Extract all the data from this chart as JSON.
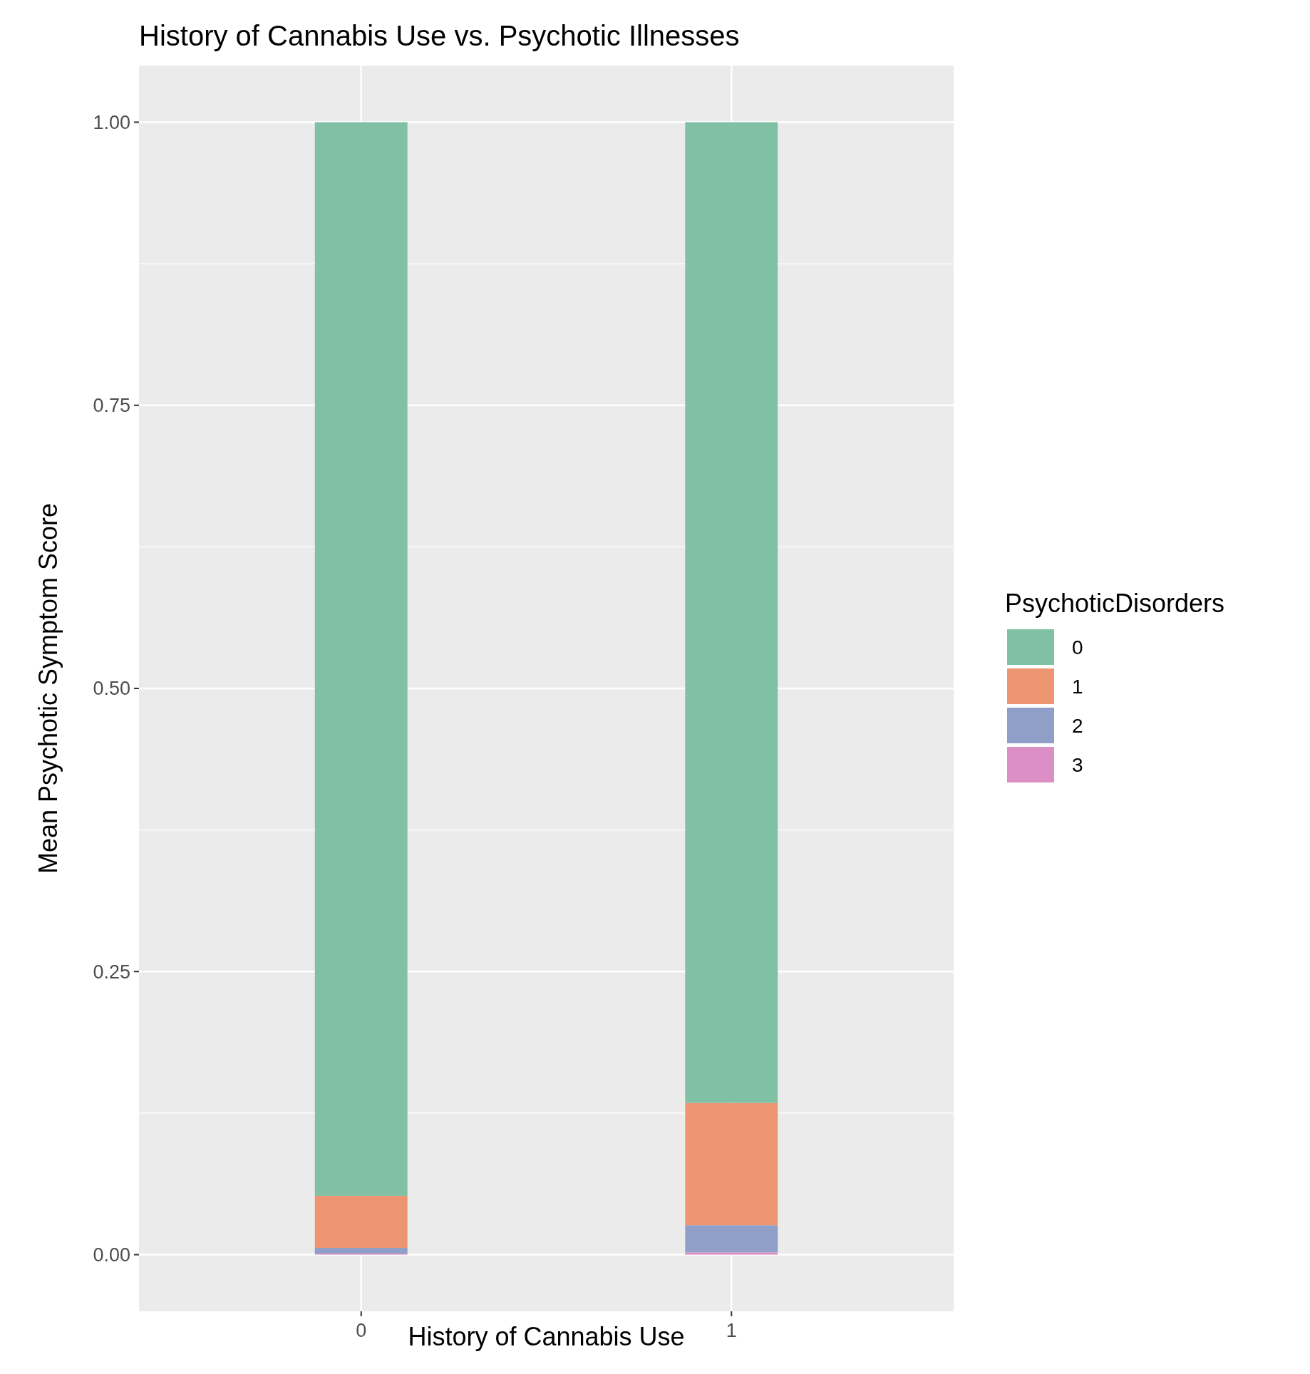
{
  "chart_data": {
    "type": "bar",
    "title": "History of Cannabis Use vs. Psychotic Illnesses",
    "xlabel": "History of Cannabis Use",
    "ylabel": "Mean Psychotic Symptom Score",
    "legend_title": "PsychoticDisorders",
    "categories": [
      "0",
      "1"
    ],
    "stacked": true,
    "series": [
      {
        "name": "3",
        "color": "#dc8fc5",
        "values": [
          0.001,
          0.002
        ]
      },
      {
        "name": "2",
        "color": "#909fc7",
        "values": [
          0.005,
          0.024
        ]
      },
      {
        "name": "1",
        "color": "#ec9570",
        "values": [
          0.046,
          0.108
        ]
      },
      {
        "name": "0",
        "color": "#80c1a6",
        "values": [
          0.948,
          0.866
        ]
      }
    ],
    "ylim": [
      -0.05,
      1.05
    ],
    "yticks": [
      {
        "value": 0,
        "label": "0.00"
      },
      {
        "value": 0.25,
        "label": "0.25"
      },
      {
        "value": 0.5,
        "label": "0.50"
      },
      {
        "value": 0.75,
        "label": "0.75"
      },
      {
        "value": 1,
        "label": "1.00"
      }
    ],
    "grid": true,
    "legend": "right"
  }
}
